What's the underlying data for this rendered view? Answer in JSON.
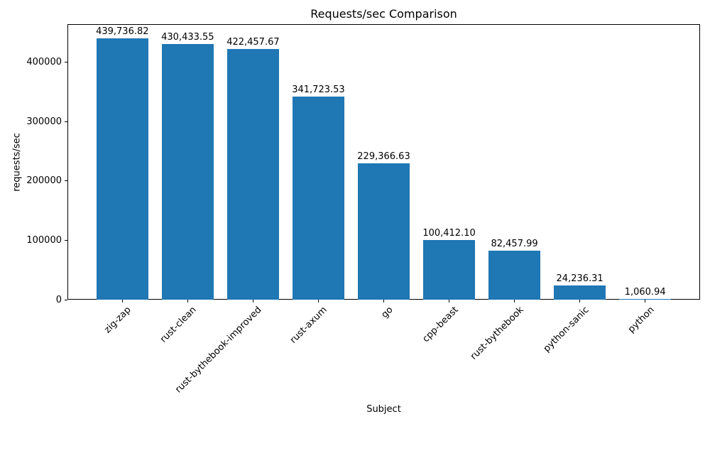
{
  "chart_data": {
    "type": "bar",
    "title": "Requests/sec Comparison",
    "xlabel": "Subject",
    "ylabel": "requests/sec",
    "categories": [
      "zig-zap",
      "rust-clean",
      "rust-bythebook-improved",
      "rust-axum",
      "go",
      "cpp-beast",
      "rust-bythebook",
      "python-sanic",
      "python"
    ],
    "values": [
      439736.82,
      430433.55,
      422457.67,
      341723.53,
      229366.63,
      100412.1,
      82457.99,
      24236.31,
      1060.94
    ],
    "value_labels": [
      "439,736.82",
      "430,433.55",
      "422,457.67",
      "341,723.53",
      "229,366.63",
      "100,412.10",
      "82,457.99",
      "24,236.31",
      "1,060.94"
    ],
    "yticks": [
      0,
      100000,
      200000,
      300000,
      400000
    ],
    "ytick_labels": [
      "0",
      "100000",
      "200000",
      "300000",
      "400000"
    ],
    "ylim": [
      0,
      464000
    ],
    "bar_color": "#1f77b4",
    "grid": false,
    "legend": "none",
    "xtick_rotation_deg": 45
  }
}
